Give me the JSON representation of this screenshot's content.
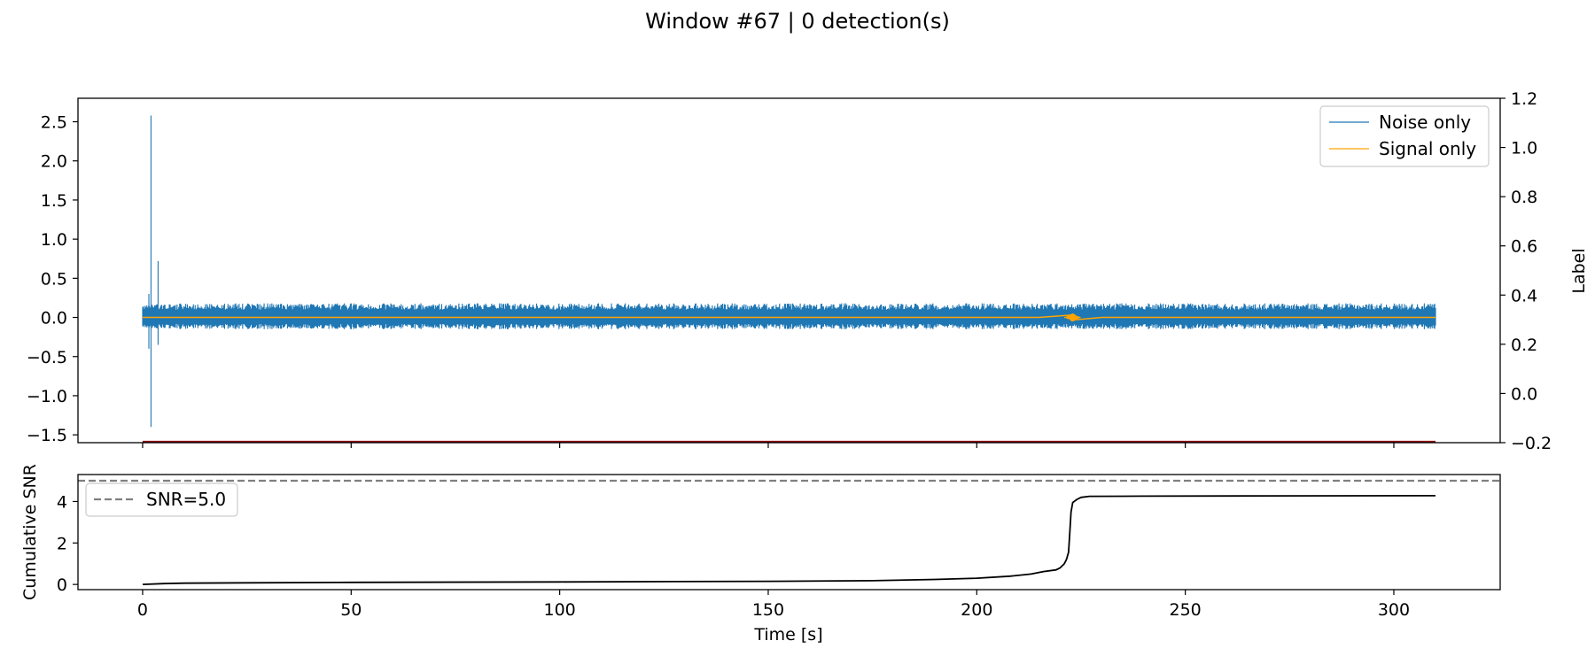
{
  "figure": {
    "title": "Window #67 | 0 detection(s)"
  },
  "colors": {
    "noise": "#1f77b4",
    "signal": "#ffa500",
    "label_line": "#8b0000",
    "cumulative_snr": "#000000",
    "threshold": "#808080"
  },
  "chart_data": [
    {
      "type": "line",
      "title": "",
      "xlabel": "",
      "ylabel": "",
      "ylabel_right": "Label",
      "xlim": [
        -15.5,
        325.5
      ],
      "ylim": [
        -1.6,
        2.8
      ],
      "ylim_right": [
        -0.2,
        1.2
      ],
      "yticks": [
        "2.5",
        "2.0",
        "1.5",
        "1.0",
        "0.5",
        "0.0",
        "−0.5",
        "−1.0",
        "−1.5"
      ],
      "yticks_right": [
        "1.2",
        "1.0",
        "0.8",
        "0.6",
        "0.4",
        "0.2",
        "0.0",
        "−0.2"
      ],
      "legend_position": "upper right",
      "grid": false,
      "series": [
        {
          "name": "Noise only",
          "axis": "left",
          "x_range": [
            0,
            310
          ],
          "baseline_band": [
            -0.15,
            0.18
          ],
          "spikes": [
            {
              "x": 2.0,
              "y_max": 2.58,
              "y_min": -1.4
            },
            {
              "x": 3.7,
              "y_max": 0.72,
              "y_min": -0.35
            },
            {
              "x": 1.5,
              "y_max": 0.3,
              "y_min": -0.4
            }
          ]
        },
        {
          "name": "Signal only",
          "axis": "left",
          "x_range": [
            0,
            310
          ],
          "values_description_points": [
            {
              "x": 0,
              "y": 0.0
            },
            {
              "x": 215,
              "y": 0.0
            },
            {
              "x": 222.5,
              "y": 0.03
            },
            {
              "x": 223.5,
              "y": -0.03
            },
            {
              "x": 230,
              "y": 0.0
            },
            {
              "x": 310,
              "y": 0.0
            }
          ]
        },
        {
          "name": "",
          "axis": "right",
          "x": [
            0,
            310
          ],
          "y": [
            -0.2,
            -0.2
          ]
        }
      ]
    },
    {
      "type": "line",
      "title": "",
      "xlabel": "Time [s]",
      "ylabel": "Cumulative SNR",
      "xlim": [
        -15.5,
        325.5
      ],
      "ylim": [
        -0.25,
        5.3
      ],
      "xticks": [
        "0",
        "50",
        "100",
        "150",
        "200",
        "250",
        "300"
      ],
      "yticks": [
        "4",
        "2",
        "0"
      ],
      "legend_position": "upper left",
      "grid": false,
      "threshold": {
        "name": "SNR=5.0",
        "value": 5.0
      },
      "series": [
        {
          "name": "",
          "x": [
            0,
            5,
            10,
            25,
            50,
            100,
            150,
            175,
            190,
            200,
            208,
            213,
            216,
            219,
            220,
            221,
            221.5,
            222,
            222.3,
            222.6,
            223,
            224,
            225,
            227,
            240,
            270,
            310
          ],
          "y": [
            0.0,
            0.04,
            0.06,
            0.08,
            0.1,
            0.12,
            0.15,
            0.18,
            0.24,
            0.3,
            0.4,
            0.5,
            0.62,
            0.7,
            0.8,
            1.0,
            1.2,
            1.55,
            2.5,
            3.5,
            3.95,
            4.1,
            4.2,
            4.25,
            4.26,
            4.27,
            4.28
          ]
        }
      ]
    }
  ]
}
